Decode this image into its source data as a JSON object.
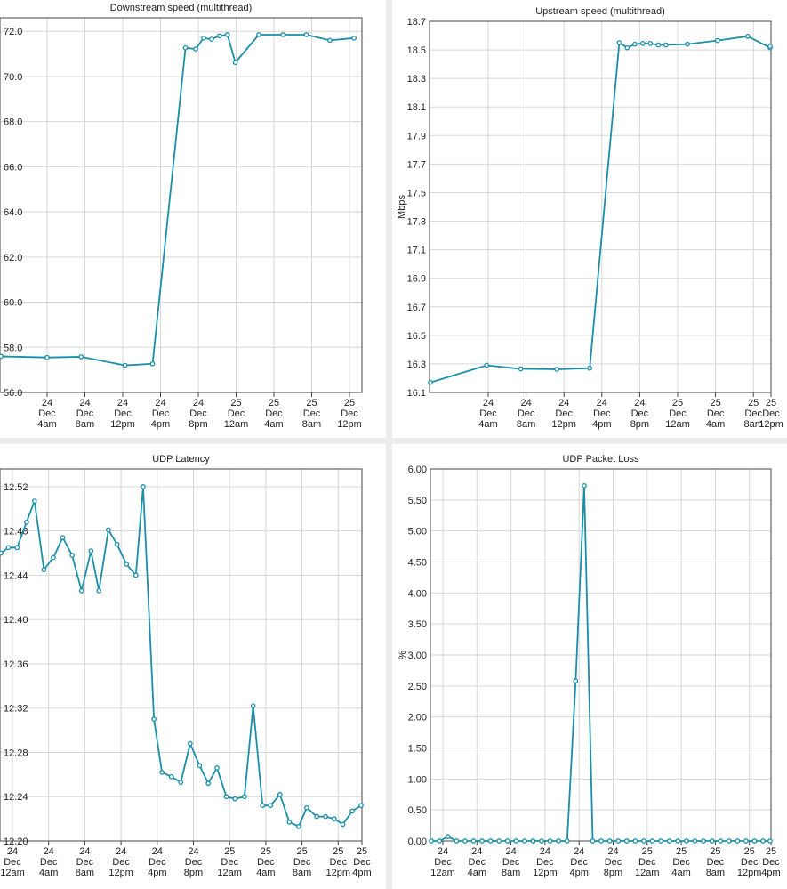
{
  "series_color": "#1a8fa8",
  "chart_data": [
    {
      "type": "line",
      "title": "Downstream speed (multithread)",
      "xlabel": "",
      "ylabel": "",
      "ylim": [
        56.0,
        72.6
      ],
      "y_ticks": [
        "56.0",
        "58.0",
        "60.0",
        "62.0",
        "64.0",
        "66.0",
        "68.0",
        "70.0",
        "72.0"
      ],
      "x_ticks": [
        [
          "24",
          "Dec",
          "4am"
        ],
        [
          "24",
          "Dec",
          "8am"
        ],
        [
          "24",
          "Dec",
          "12pm"
        ],
        [
          "24",
          "Dec",
          "4pm"
        ],
        [
          "24",
          "Dec",
          "8pm"
        ],
        [
          "25",
          "Dec",
          "12am"
        ],
        [
          "25",
          "Dec",
          "4am"
        ],
        [
          "25",
          "Dec",
          "8am"
        ],
        [
          "25",
          "Dec",
          "12pm"
        ]
      ],
      "x": [
        0,
        1.0,
        1.9,
        3.06,
        3.79,
        4.66,
        4.93,
        5.14,
        5.35,
        5.56,
        5.77,
        5.98,
        6.6,
        7.24,
        7.86,
        8.48,
        9.12
      ],
      "y": [
        57.6,
        57.55,
        57.58,
        57.2,
        57.27,
        71.27,
        71.22,
        71.7,
        71.65,
        71.8,
        71.85,
        70.62,
        71.85,
        71.85,
        71.85,
        71.6,
        71.7
      ]
    },
    {
      "type": "line",
      "title": "Upstream speed (multithread)",
      "xlabel": "",
      "ylabel": "Mbps",
      "ylim": [
        16.1,
        18.7
      ],
      "y_ticks": [
        "16.1",
        "16.3",
        "16.5",
        "16.7",
        "16.9",
        "17.1",
        "17.3",
        "17.5",
        "17.7",
        "17.9",
        "18.1",
        "18.3",
        "18.5",
        "18.7"
      ],
      "x_ticks": [
        [
          "24",
          "Dec",
          "4am"
        ],
        [
          "24",
          "Dec",
          "8am"
        ],
        [
          "24",
          "Dec",
          "12pm"
        ],
        [
          "24",
          "Dec",
          "4pm"
        ],
        [
          "24",
          "Dec",
          "8pm"
        ],
        [
          "25",
          "Dec",
          "12am"
        ],
        [
          "25",
          "Dec",
          "4am"
        ],
        [
          "25",
          "Dec",
          "8am"
        ],
        [
          "25",
          "Dec",
          "12pm"
        ]
      ],
      "x": [
        0,
        0.96,
        1.86,
        2.81,
        3.68,
        4.46,
        4.67,
        4.87,
        5.08,
        5.28,
        5.49,
        5.69,
        6.26,
        7.05,
        7.85,
        8.63,
        9.33
      ],
      "y": [
        16.17,
        16.29,
        16.265,
        16.262,
        16.27,
        18.55,
        18.515,
        18.54,
        18.545,
        18.545,
        18.535,
        18.535,
        18.54,
        18.565,
        18.595,
        18.515,
        18.525
      ]
    },
    {
      "type": "line",
      "title": "UDP Latency",
      "xlabel": "",
      "ylabel": "",
      "ylim": [
        12.2,
        12.536
      ],
      "y_ticks": [
        "12.20",
        "12.24",
        "12.28",
        "12.32",
        "12.36",
        "12.40",
        "12.44",
        "12.48",
        "12.52"
      ],
      "x_ticks": [
        [
          "24",
          "Dec",
          "12am"
        ],
        [
          "24",
          "Dec",
          "4am"
        ],
        [
          "24",
          "Dec",
          "8am"
        ],
        [
          "24",
          "Dec",
          "12pm"
        ],
        [
          "24",
          "Dec",
          "4pm"
        ],
        [
          "24",
          "Dec",
          "8pm"
        ],
        [
          "25",
          "Dec",
          "12am"
        ],
        [
          "25",
          "Dec",
          "4am"
        ],
        [
          "25",
          "Dec",
          "8am"
        ],
        [
          "25",
          "Dec",
          "12pm"
        ],
        [
          "25",
          "Dec",
          "4pm"
        ]
      ],
      "x": [
        0,
        0.24,
        0.48,
        0.74,
        0.96,
        1.22,
        1.48,
        1.74,
        2.0,
        2.26,
        2.52,
        2.74,
        3.0,
        3.24,
        3.5,
        3.76,
        3.96,
        4.26,
        4.48,
        4.74,
        5.0,
        5.26,
        5.52,
        5.76,
        6.0,
        6.26,
        6.5,
        6.76,
        7.0,
        7.26,
        7.48,
        7.74,
        8.0,
        8.26,
        8.48,
        8.76,
        9.0,
        9.24,
        9.48,
        9.74,
        10.0
      ],
      "y": [
        12.46,
        12.465,
        12.465,
        12.488,
        12.507,
        12.445,
        12.456,
        12.474,
        12.458,
        12.426,
        12.462,
        12.426,
        12.481,
        12.468,
        12.45,
        12.44,
        12.52,
        12.31,
        12.262,
        12.258,
        12.253,
        12.288,
        12.268,
        12.252,
        12.266,
        12.24,
        12.238,
        12.24,
        12.322,
        12.232,
        12.232,
        12.242,
        12.217,
        12.213,
        12.23,
        12.222,
        12.222,
        12.22,
        12.215,
        12.227,
        12.232
      ]
    },
    {
      "type": "line",
      "title": "UDP Packet Loss",
      "xlabel": "",
      "ylabel": "%",
      "ylim": [
        0.0,
        6.0
      ],
      "y_ticks": [
        "0.00",
        "0.50",
        "1.00",
        "1.50",
        "2.00",
        "2.50",
        "3.00",
        "3.50",
        "4.00",
        "4.50",
        "5.00",
        "5.50",
        "6.00"
      ],
      "x_ticks": [
        [
          "24",
          "Dec",
          "12am"
        ],
        [
          "24",
          "Dec",
          "4am"
        ],
        [
          "24",
          "Dec",
          "8am"
        ],
        [
          "24",
          "Dec",
          "12pm"
        ],
        [
          "24",
          "Dec",
          "4pm"
        ],
        [
          "24",
          "Dec",
          "8pm"
        ],
        [
          "25",
          "Dec",
          "12am"
        ],
        [
          "25",
          "Dec",
          "4am"
        ],
        [
          "25",
          "Dec",
          "8am"
        ],
        [
          "25",
          "Dec",
          "12pm"
        ],
        [
          "25",
          "Dec",
          "4pm"
        ]
      ],
      "x": [
        0,
        0.25,
        0.5,
        0.75,
        1.0,
        1.25,
        1.5,
        1.75,
        2.0,
        2.25,
        2.5,
        2.75,
        3.0,
        3.25,
        3.5,
        3.75,
        4.0,
        4.25,
        4.5,
        4.75,
        5.0,
        5.25,
        5.5,
        5.75,
        6.0,
        6.25,
        6.5,
        6.75,
        7.0,
        7.25,
        7.5,
        7.75,
        8.0,
        8.25,
        8.5,
        8.75,
        9.0,
        9.25,
        9.5,
        9.75,
        10.0
      ],
      "y": [
        0,
        0,
        0.07,
        0,
        0,
        0,
        0,
        0,
        0,
        0,
        0,
        0,
        0,
        0,
        0,
        0,
        0,
        2.58,
        5.73,
        0,
        0,
        0,
        0,
        0,
        0,
        0,
        0,
        0,
        0,
        0,
        0,
        0,
        0,
        0,
        0,
        0,
        0,
        0,
        0,
        0,
        0
      ]
    }
  ]
}
